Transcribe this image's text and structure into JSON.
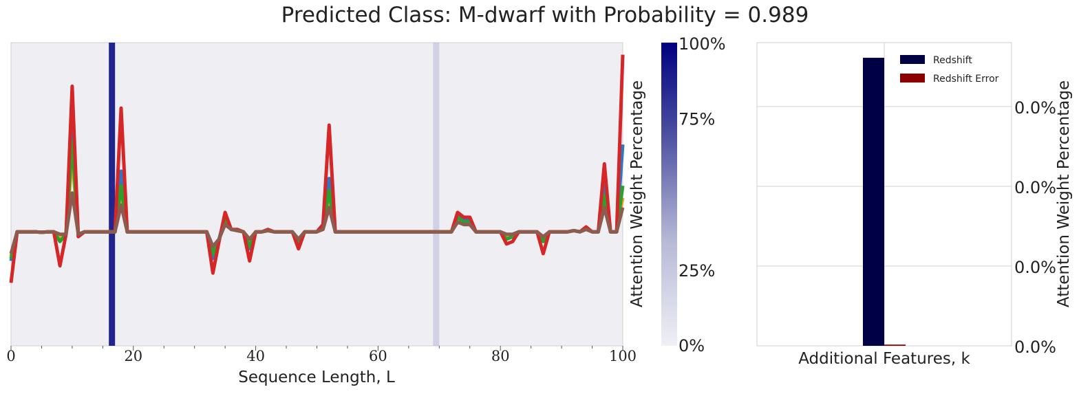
{
  "title": "Predicted Class: M-dwarf with Probability = 0.989",
  "chart_data": [
    {
      "type": "line",
      "xlabel": "Sequence Length, L",
      "ylabel": "",
      "xlim": [
        0,
        100
      ],
      "x_ticks": [
        "0",
        "20",
        "40",
        "60",
        "80",
        "100"
      ],
      "attention_highlights": [
        {
          "x": 16.5,
          "weight_percent": 100
        },
        {
          "x": 69.5,
          "weight_percent": 12
        }
      ],
      "series": [
        {
          "color": "#2f78c0",
          "values": [
            0.35,
            0.47,
            0.47,
            0.47,
            0.47,
            0.468,
            0.47,
            0.47,
            0.44,
            0.46,
            0.95,
            0.45,
            0.47,
            0.47,
            0.47,
            0.47,
            0.47,
            0.47,
            0.72,
            0.47,
            0.47,
            0.47,
            0.47,
            0.47,
            0.47,
            0.47,
            0.47,
            0.47,
            0.47,
            0.47,
            0.47,
            0.47,
            0.47,
            0.36,
            0.44,
            0.53,
            0.48,
            0.475,
            0.47,
            0.4,
            0.47,
            0.47,
            0.475,
            0.47,
            0.47,
            0.47,
            0.47,
            0.42,
            0.47,
            0.47,
            0.47,
            0.5,
            0.69,
            0.47,
            0.47,
            0.47,
            0.47,
            0.47,
            0.47,
            0.47,
            0.47,
            0.47,
            0.47,
            0.47,
            0.47,
            0.47,
            0.47,
            0.47,
            0.47,
            0.47,
            0.47,
            0.47,
            0.47,
            0.54,
            0.52,
            0.52,
            0.47,
            0.47,
            0.47,
            0.47,
            0.47,
            0.44,
            0.45,
            0.47,
            0.47,
            0.47,
            0.47,
            0.43,
            0.47,
            0.47,
            0.47,
            0.47,
            0.475,
            0.47,
            0.485,
            0.47,
            0.47,
            0.67,
            0.47,
            0.47,
            0.83
          ]
        },
        {
          "color": "#f0a030",
          "values": [
            0.37,
            0.47,
            0.47,
            0.47,
            0.47,
            0.468,
            0.47,
            0.47,
            0.45,
            0.46,
            0.78,
            0.46,
            0.47,
            0.47,
            0.47,
            0.47,
            0.47,
            0.47,
            0.62,
            0.47,
            0.47,
            0.47,
            0.47,
            0.47,
            0.47,
            0.47,
            0.47,
            0.47,
            0.47,
            0.47,
            0.47,
            0.47,
            0.47,
            0.4,
            0.44,
            0.51,
            0.48,
            0.475,
            0.47,
            0.43,
            0.47,
            0.47,
            0.475,
            0.47,
            0.47,
            0.47,
            0.47,
            0.44,
            0.47,
            0.47,
            0.47,
            0.49,
            0.61,
            0.47,
            0.47,
            0.47,
            0.47,
            0.47,
            0.47,
            0.47,
            0.47,
            0.47,
            0.47,
            0.47,
            0.47,
            0.47,
            0.47,
            0.47,
            0.47,
            0.47,
            0.47,
            0.47,
            0.47,
            0.52,
            0.5,
            0.5,
            0.47,
            0.47,
            0.47,
            0.47,
            0.47,
            0.45,
            0.46,
            0.47,
            0.47,
            0.47,
            0.47,
            0.44,
            0.47,
            0.47,
            0.47,
            0.47,
            0.475,
            0.47,
            0.48,
            0.47,
            0.47,
            0.6,
            0.47,
            0.47,
            0.61
          ]
        },
        {
          "color": "#2ca02c",
          "values": [
            0.36,
            0.47,
            0.47,
            0.47,
            0.47,
            0.468,
            0.47,
            0.47,
            0.43,
            0.46,
            0.84,
            0.46,
            0.47,
            0.47,
            0.47,
            0.47,
            0.47,
            0.47,
            0.66,
            0.47,
            0.47,
            0.47,
            0.47,
            0.47,
            0.47,
            0.47,
            0.47,
            0.47,
            0.47,
            0.47,
            0.47,
            0.47,
            0.47,
            0.38,
            0.44,
            0.52,
            0.48,
            0.475,
            0.47,
            0.41,
            0.47,
            0.47,
            0.475,
            0.47,
            0.47,
            0.47,
            0.47,
            0.43,
            0.47,
            0.47,
            0.47,
            0.49,
            0.64,
            0.47,
            0.47,
            0.47,
            0.47,
            0.47,
            0.47,
            0.47,
            0.47,
            0.47,
            0.47,
            0.47,
            0.47,
            0.47,
            0.47,
            0.47,
            0.47,
            0.47,
            0.47,
            0.47,
            0.47,
            0.53,
            0.51,
            0.51,
            0.47,
            0.47,
            0.47,
            0.47,
            0.47,
            0.44,
            0.45,
            0.47,
            0.47,
            0.47,
            0.47,
            0.43,
            0.47,
            0.47,
            0.47,
            0.47,
            0.475,
            0.47,
            0.485,
            0.47,
            0.47,
            0.62,
            0.47,
            0.47,
            0.66
          ]
        },
        {
          "color": "#d62728",
          "values": [
            0.26,
            0.47,
            0.47,
            0.47,
            0.47,
            0.468,
            0.47,
            0.47,
            0.33,
            0.46,
            1.07,
            0.45,
            0.47,
            0.47,
            0.47,
            0.47,
            0.47,
            0.47,
            0.98,
            0.47,
            0.47,
            0.47,
            0.47,
            0.47,
            0.47,
            0.47,
            0.47,
            0.47,
            0.47,
            0.47,
            0.47,
            0.47,
            0.47,
            0.3,
            0.43,
            0.55,
            0.48,
            0.48,
            0.47,
            0.35,
            0.47,
            0.47,
            0.48,
            0.47,
            0.47,
            0.47,
            0.47,
            0.4,
            0.47,
            0.47,
            0.47,
            0.5,
            0.91,
            0.47,
            0.47,
            0.47,
            0.47,
            0.47,
            0.47,
            0.47,
            0.47,
            0.47,
            0.47,
            0.47,
            0.47,
            0.47,
            0.47,
            0.47,
            0.47,
            0.47,
            0.47,
            0.47,
            0.47,
            0.55,
            0.53,
            0.53,
            0.47,
            0.47,
            0.47,
            0.47,
            0.47,
            0.42,
            0.43,
            0.47,
            0.47,
            0.47,
            0.47,
            0.38,
            0.47,
            0.47,
            0.47,
            0.47,
            0.475,
            0.47,
            0.49,
            0.47,
            0.47,
            0.75,
            0.47,
            0.47,
            1.2
          ]
        },
        {
          "color": "#8c5c50",
          "values": [
            0.38,
            0.47,
            0.47,
            0.47,
            0.47,
            0.468,
            0.47,
            0.47,
            0.46,
            0.46,
            0.63,
            0.46,
            0.47,
            0.47,
            0.47,
            0.47,
            0.47,
            0.47,
            0.58,
            0.47,
            0.47,
            0.47,
            0.47,
            0.47,
            0.47,
            0.47,
            0.47,
            0.47,
            0.47,
            0.47,
            0.47,
            0.47,
            0.47,
            0.41,
            0.44,
            0.5,
            0.48,
            0.475,
            0.47,
            0.44,
            0.47,
            0.47,
            0.475,
            0.47,
            0.47,
            0.47,
            0.47,
            0.44,
            0.47,
            0.47,
            0.47,
            0.48,
            0.57,
            0.47,
            0.47,
            0.47,
            0.47,
            0.47,
            0.47,
            0.47,
            0.47,
            0.47,
            0.47,
            0.47,
            0.47,
            0.47,
            0.47,
            0.47,
            0.47,
            0.47,
            0.47,
            0.47,
            0.47,
            0.51,
            0.5,
            0.5,
            0.47,
            0.47,
            0.47,
            0.47,
            0.47,
            0.46,
            0.46,
            0.47,
            0.47,
            0.47,
            0.47,
            0.45,
            0.47,
            0.47,
            0.47,
            0.47,
            0.475,
            0.47,
            0.48,
            0.47,
            0.47,
            0.57,
            0.47,
            0.47,
            0.57
          ]
        }
      ],
      "grid": false
    },
    {
      "type": "colorbar",
      "ylabel": "Attention Weight Percentage",
      "ticks": [
        "0%",
        "25%",
        "75%",
        "100%"
      ],
      "tick_values": [
        0,
        25,
        75,
        100
      ],
      "colors": [
        "#f0f0f6",
        "#000080"
      ]
    },
    {
      "type": "bar",
      "xlabel": "Additional Features, k",
      "ylabel": "Attention Weight Percentage",
      "y_ticks": [
        "0.0%",
        "0.0%",
        "0.0%",
        "0.0%"
      ],
      "legend": "top-right",
      "series": [
        {
          "name": "Redshift",
          "color": "#000045",
          "value": 0.95
        },
        {
          "name": "Redshift Error",
          "color": "#8b0000",
          "value": 0.004
        }
      ],
      "grid": true
    }
  ]
}
